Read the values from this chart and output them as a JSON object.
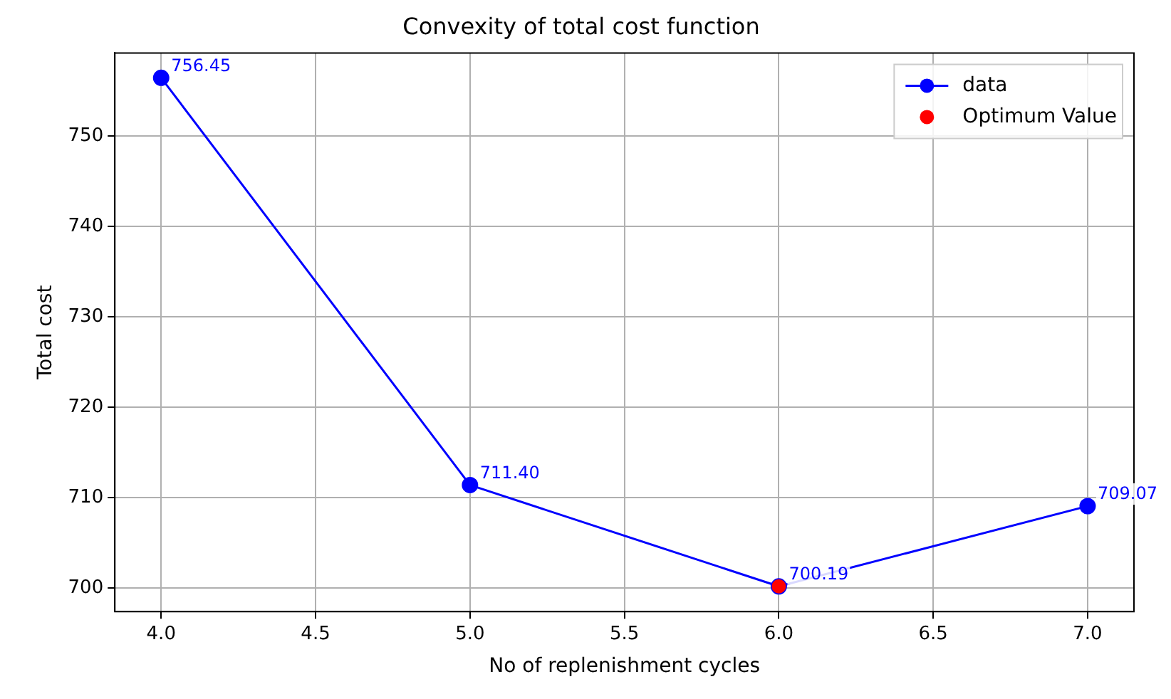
{
  "chart_data": {
    "type": "line",
    "title": "Convexity of total cost function",
    "xlabel": "No of replenishment cycles",
    "ylabel": "Total cost",
    "x": [
      4,
      5,
      6,
      7
    ],
    "series": [
      {
        "name": "data",
        "color": "#0000ff",
        "values": [
          756.45,
          711.4,
          700.19,
          709.07
        ],
        "value_labels": [
          "756.45",
          "711.40",
          "700.19",
          "709.07"
        ]
      },
      {
        "name": "Optimum Value",
        "type": "scatter",
        "color": "#ff0000",
        "x": [
          6
        ],
        "values": [
          700.19
        ],
        "value_labels": [
          null
        ]
      }
    ],
    "xlim": [
      3.85,
      7.15
    ],
    "xticks": [
      {
        "value": 4,
        "label": "4.0"
      },
      {
        "value": 4.5,
        "label": "4.5"
      },
      {
        "value": 5,
        "label": "5.0"
      },
      {
        "value": 5.5,
        "label": "5.5"
      },
      {
        "value": 6,
        "label": "6.0"
      },
      {
        "value": 6.5,
        "label": "6.5"
      },
      {
        "value": 7,
        "label": "7.0"
      }
    ],
    "ylim": [
      697.4,
      759.2
    ],
    "yticks": [
      700,
      710,
      720,
      730,
      740,
      750
    ],
    "marker": "circle",
    "grid": true,
    "legend": "top right"
  }
}
